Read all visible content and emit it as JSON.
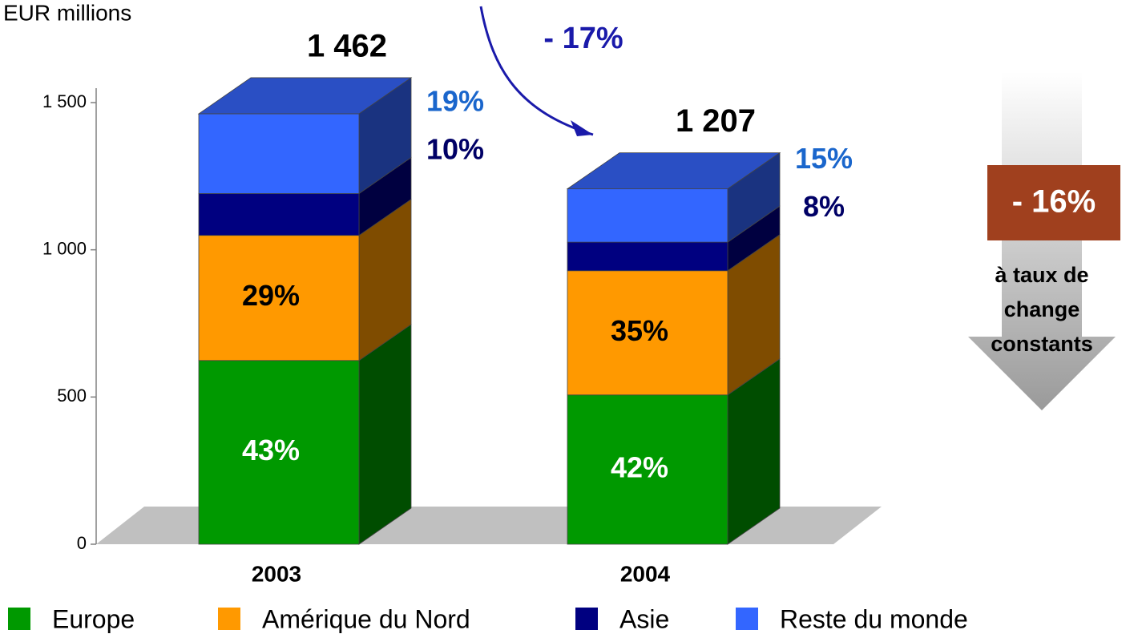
{
  "chart_data": {
    "type": "stacked_bar_3d",
    "y_label": "EUR millions",
    "categories": [
      "2003",
      "2004"
    ],
    "series": [
      {
        "name": "Europe",
        "color": "#009900",
        "side_color": "#004d00",
        "values": [
          624,
          507
        ],
        "share_labels": [
          "43%",
          "42%"
        ],
        "label_color": "#ffffff",
        "label_inside": true
      },
      {
        "name": "Amérique du Nord",
        "color": "#ff9900",
        "side_color": "#7f4c00",
        "values": [
          425,
          422
        ],
        "share_labels": [
          "29%",
          "35%"
        ],
        "label_color": "#000000",
        "label_inside": true
      },
      {
        "name": "Asie",
        "color": "#000080",
        "side_color": "#000040",
        "values": [
          142,
          97
        ],
        "share_labels": [
          "10%",
          "8%"
        ],
        "label_color": "#000066",
        "label_inside": false
      },
      {
        "name": "Reste du monde",
        "color": "#3366ff",
        "side_color": "#1a3380",
        "top_color": "#2a4fc4",
        "values": [
          271,
          181
        ],
        "share_labels": [
          "19%",
          "15%"
        ],
        "label_color": "#1a66cc",
        "label_inside": false
      }
    ],
    "totals": [
      {
        "value": 1462,
        "label": "1 462"
      },
      {
        "value": 1207,
        "label": "1 207"
      }
    ],
    "ylim": [
      0,
      1500
    ],
    "yticks": [
      0,
      500,
      {
        "value": 1000,
        "label": "1 000"
      },
      {
        "value": 1500,
        "label": "1 500"
      }
    ],
    "change_label": "- 17%",
    "constant_change_label": "- 16%",
    "constant_note_lines": [
      "à  taux de",
      "change",
      "constants"
    ]
  }
}
